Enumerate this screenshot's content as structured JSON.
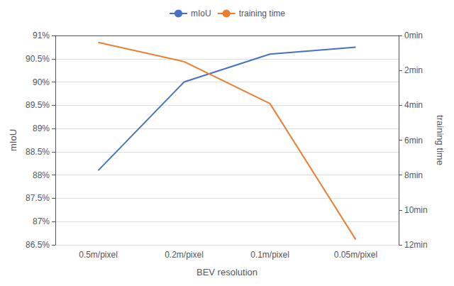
{
  "chart_data": {
    "type": "line",
    "categories": [
      "0.5m/pixel",
      "0.2m/pixel",
      "0.1m/pixel",
      "0.05m/pixel"
    ],
    "series": [
      {
        "name": "mIoU",
        "color": "#4472C4",
        "values": [
          88.1,
          90.0,
          90.6,
          90.75
        ]
      },
      {
        "name": "training time",
        "color": "#ED7D31",
        "values": [
          0.4,
          1.5,
          3.9,
          11.7
        ],
        "axis": "y2"
      }
    ],
    "xlabel": "BEV resolution",
    "ylabel": "mIoU",
    "y2label": "training time",
    "ylim": [
      86.5,
      91.0
    ],
    "yticks": [
      {
        "value": 86.5,
        "label": "86.5%"
      },
      {
        "value": 87.0,
        "label": "87%"
      },
      {
        "value": 87.5,
        "label": "87.5%"
      },
      {
        "value": 88.0,
        "label": "88%"
      },
      {
        "value": 88.5,
        "label": "88.5%"
      },
      {
        "value": 89.0,
        "label": "89%"
      },
      {
        "value": 89.5,
        "label": "89.5%"
      },
      {
        "value": 90.0,
        "label": "90%"
      },
      {
        "value": 90.5,
        "label": "90.5%"
      },
      {
        "value": 91.0,
        "label": "91%"
      }
    ],
    "y2lim": [
      12,
      0
    ],
    "y2ticks": [
      {
        "value": 0,
        "label": "0min"
      },
      {
        "value": 2,
        "label": "2min"
      },
      {
        "value": 4,
        "label": "4min"
      },
      {
        "value": 6,
        "label": "6min"
      },
      {
        "value": 8,
        "label": "8min"
      },
      {
        "value": 10,
        "label": "10min"
      },
      {
        "value": 12,
        "label": "12min"
      }
    ],
    "grid": true,
    "legend": "top"
  }
}
